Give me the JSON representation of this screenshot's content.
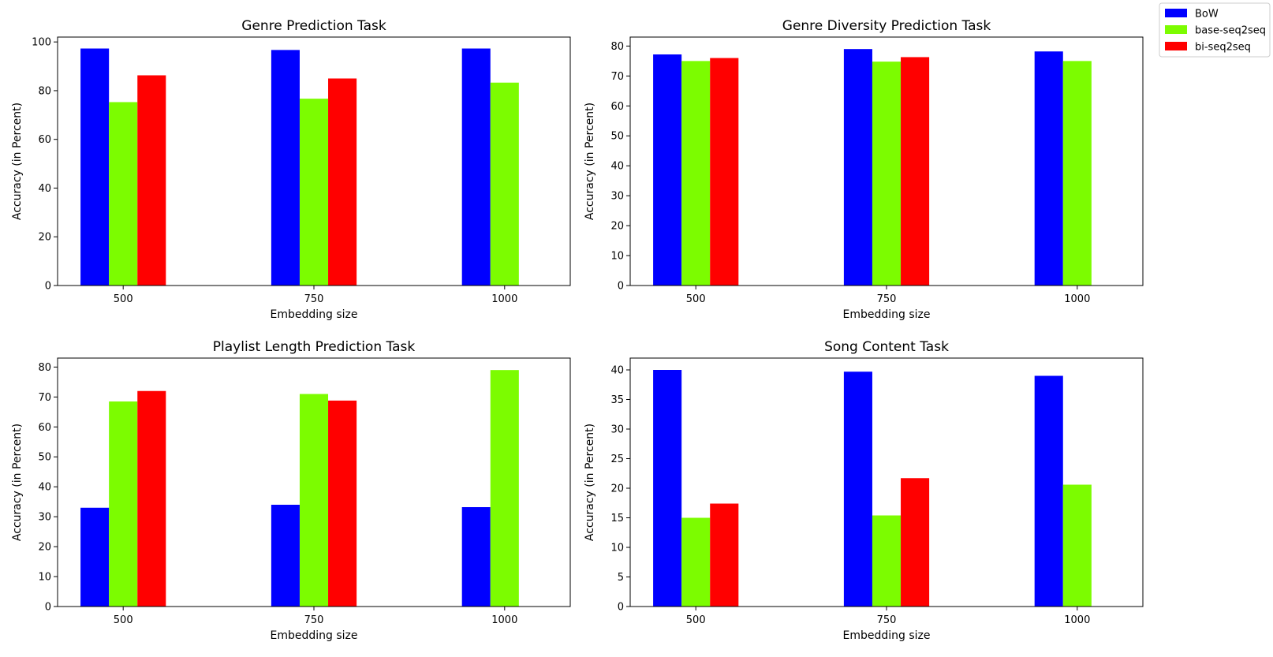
{
  "figure": {
    "legend": {
      "placement": "top-right",
      "entries": [
        {
          "name": "BoW",
          "color": "#0000ff"
        },
        {
          "name": "base-seq2seq",
          "color": "#7cfc00"
        },
        {
          "name": "bi-seq2seq",
          "color": "#ff0000"
        }
      ]
    }
  },
  "chart_data": [
    {
      "type": "bar",
      "title": "Genre Prediction Task",
      "xlabel": "Embedding size",
      "ylabel": "Accuracy (in Percent)",
      "categories": [
        "500",
        "750",
        "1000"
      ],
      "ylim": [
        0,
        102
      ],
      "yticks": [
        0,
        20,
        40,
        60,
        80,
        100
      ],
      "series": [
        {
          "name": "BoW",
          "values": [
            97.3,
            96.7,
            97.3
          ]
        },
        {
          "name": "base-seq2seq",
          "values": [
            75.3,
            76.7,
            83.3
          ]
        },
        {
          "name": "bi-seq2seq",
          "values": [
            86.3,
            85.0,
            null
          ]
        }
      ]
    },
    {
      "type": "bar",
      "title": "Genre Diversity Prediction Task",
      "xlabel": "Embedding size",
      "ylabel": "Accuracy (in Percent)",
      "categories": [
        "500",
        "750",
        "1000"
      ],
      "ylim": [
        0,
        83
      ],
      "yticks": [
        0,
        10,
        20,
        30,
        40,
        50,
        60,
        70,
        80
      ],
      "series": [
        {
          "name": "BoW",
          "values": [
            77.2,
            79.0,
            78.2
          ]
        },
        {
          "name": "base-seq2seq",
          "values": [
            75.0,
            74.8,
            75.0
          ]
        },
        {
          "name": "bi-seq2seq",
          "values": [
            76.0,
            76.3,
            null
          ]
        }
      ]
    },
    {
      "type": "bar",
      "title": "Playlist Length Prediction Task",
      "xlabel": "Embedding size",
      "ylabel": "Accuracy (in Percent)",
      "categories": [
        "500",
        "750",
        "1000"
      ],
      "ylim": [
        0,
        83
      ],
      "yticks": [
        0,
        10,
        20,
        30,
        40,
        50,
        60,
        70,
        80
      ],
      "series": [
        {
          "name": "BoW",
          "values": [
            33.0,
            34.0,
            33.2
          ]
        },
        {
          "name": "base-seq2seq",
          "values": [
            68.5,
            71.0,
            79.0
          ]
        },
        {
          "name": "bi-seq2seq",
          "values": [
            72.0,
            68.8,
            null
          ]
        }
      ]
    },
    {
      "type": "bar",
      "title": "Song Content Task",
      "xlabel": "Embedding size",
      "ylabel": "Accuracy (in Percent)",
      "categories": [
        "500",
        "750",
        "1000"
      ],
      "ylim": [
        0,
        42
      ],
      "yticks": [
        0,
        5,
        10,
        15,
        20,
        25,
        30,
        35,
        40
      ],
      "series": [
        {
          "name": "BoW",
          "values": [
            40.0,
            39.7,
            39.0
          ]
        },
        {
          "name": "base-seq2seq",
          "values": [
            15.0,
            15.4,
            20.6
          ]
        },
        {
          "name": "bi-seq2seq",
          "values": [
            17.4,
            21.7,
            null
          ]
        }
      ]
    }
  ]
}
